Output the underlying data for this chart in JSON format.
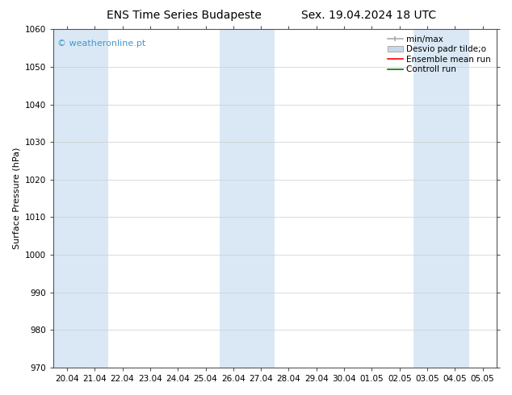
{
  "title_left": "ENS Time Series Budapeste",
  "title_right": "Sex. 19.04.2024 18 UTC",
  "ylabel": "Surface Pressure (hPa)",
  "ylim": [
    970,
    1060
  ],
  "yticks": [
    970,
    980,
    990,
    1000,
    1010,
    1020,
    1030,
    1040,
    1050,
    1060
  ],
  "xtick_labels": [
    "20.04",
    "21.04",
    "22.04",
    "23.04",
    "24.04",
    "25.04",
    "26.04",
    "27.04",
    "28.04",
    "29.04",
    "30.04",
    "01.05",
    "02.05",
    "03.05",
    "04.05",
    "05.05"
  ],
  "shaded_columns": [
    0,
    1,
    6,
    7,
    13,
    14
  ],
  "shade_color": "#dae8f5",
  "background_color": "#ffffff",
  "plot_bg_color": "#ffffff",
  "watermark": "© weatheronline.pt",
  "watermark_color": "#4499cc",
  "legend_labels": [
    "min/max",
    "Desvio padr tilde;o",
    "Ensemble mean run",
    "Controll run"
  ],
  "legend_colors": [
    "#aaaaaa",
    "#c8d8e8",
    "#ff0000",
    "#007700"
  ],
  "grid_color": "#cccccc",
  "spine_color": "#555555",
  "tick_color": "#333333",
  "title_fontsize": 10,
  "axis_label_fontsize": 8,
  "tick_fontsize": 7.5,
  "legend_fontsize": 7.5,
  "watermark_fontsize": 8
}
